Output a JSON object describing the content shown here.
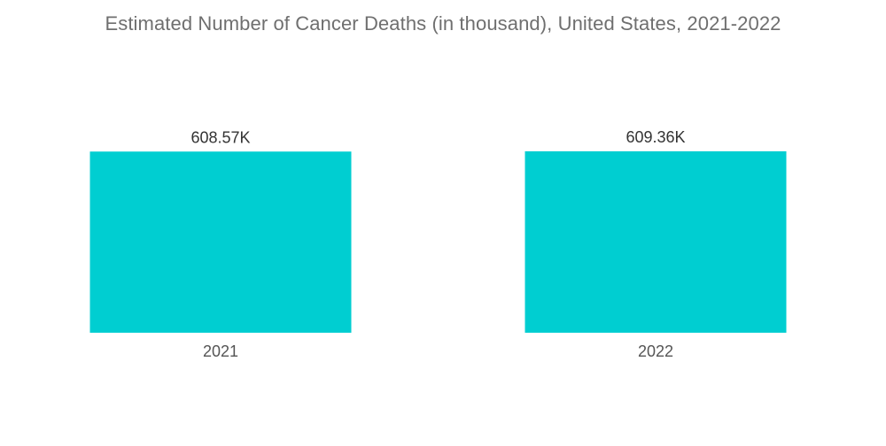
{
  "chart_data": {
    "type": "bar",
    "title": "Estimated Number of Cancer Deaths (in thousand), United States, 2021-2022",
    "categories": [
      "2021",
      "2022"
    ],
    "values": [
      608.57,
      609.36
    ],
    "data_labels": [
      "608.57K",
      "609.36K"
    ],
    "xlabel": "",
    "ylabel": "",
    "ylim": [
      0,
      609.36
    ],
    "grid": false,
    "legend": "none",
    "colors": {
      "bar": "#00CED1",
      "title": "#6f6f6f",
      "labels": "#333333"
    }
  }
}
